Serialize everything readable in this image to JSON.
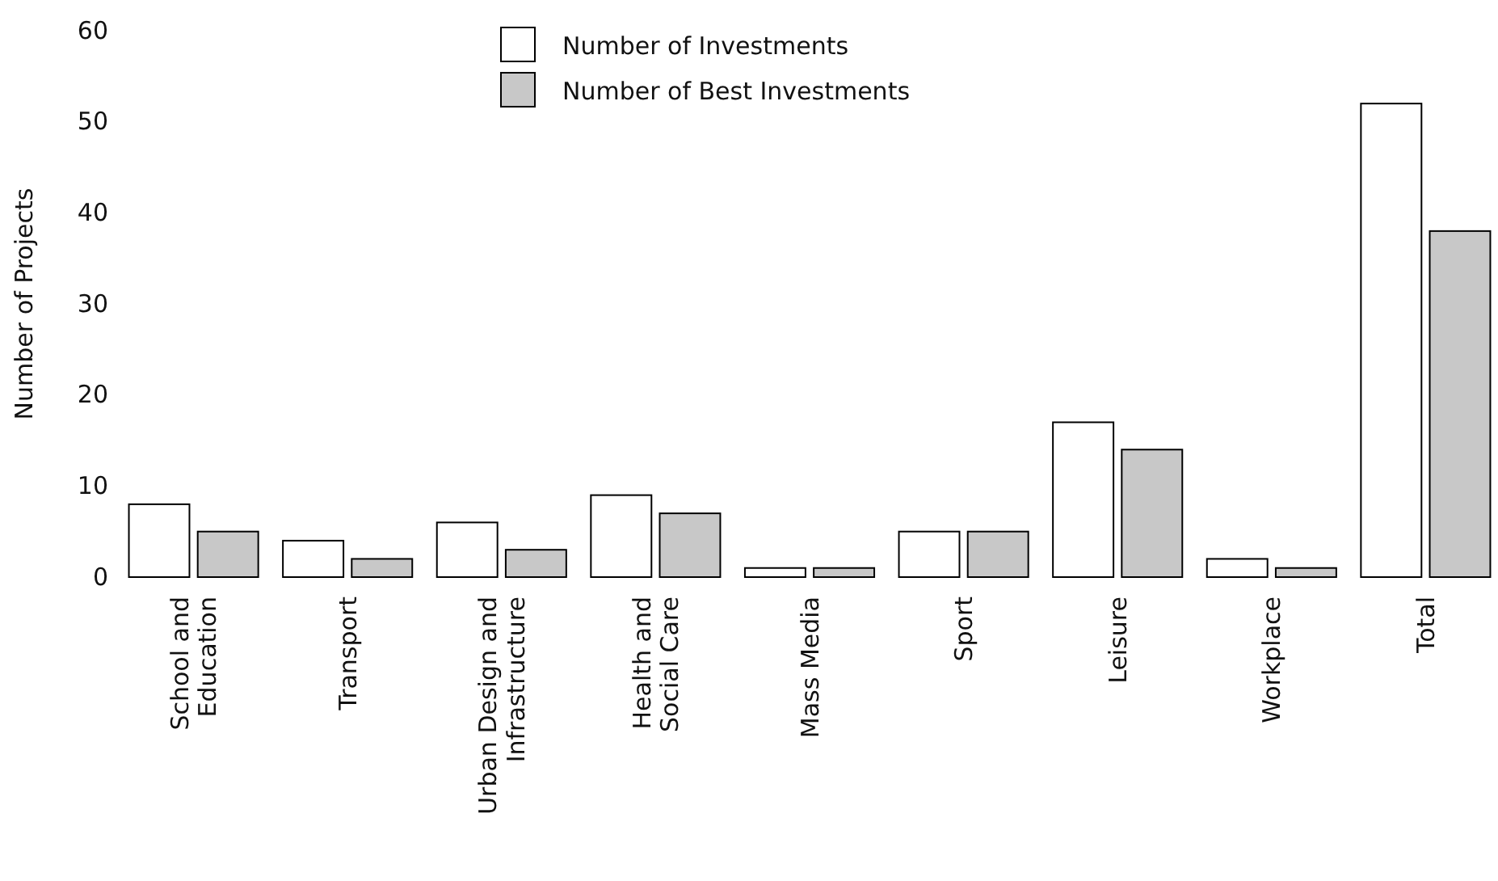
{
  "chart_data": {
    "type": "bar",
    "ylabel": "Number of Projects",
    "categories": [
      "School and Education",
      "Transport",
      "Urban Design and Infrastructure",
      "Health and Social Care",
      "Mass Media",
      "Sport",
      "Leisure",
      "Workplace",
      "Total"
    ],
    "series": [
      {
        "name": "Number of Investments",
        "color": "#ffffff",
        "values": [
          8,
          4,
          6,
          9,
          1,
          5,
          17,
          2,
          52
        ]
      },
      {
        "name": "Number of Best Investments",
        "color": "#c8c8c8",
        "values": [
          5,
          2,
          3,
          7,
          1,
          5,
          14,
          1,
          38
        ]
      }
    ],
    "ylim": [
      0,
      60
    ],
    "yticks": [
      0,
      10,
      20,
      30,
      40,
      50,
      60
    ],
    "grid": false,
    "legend": "top"
  }
}
